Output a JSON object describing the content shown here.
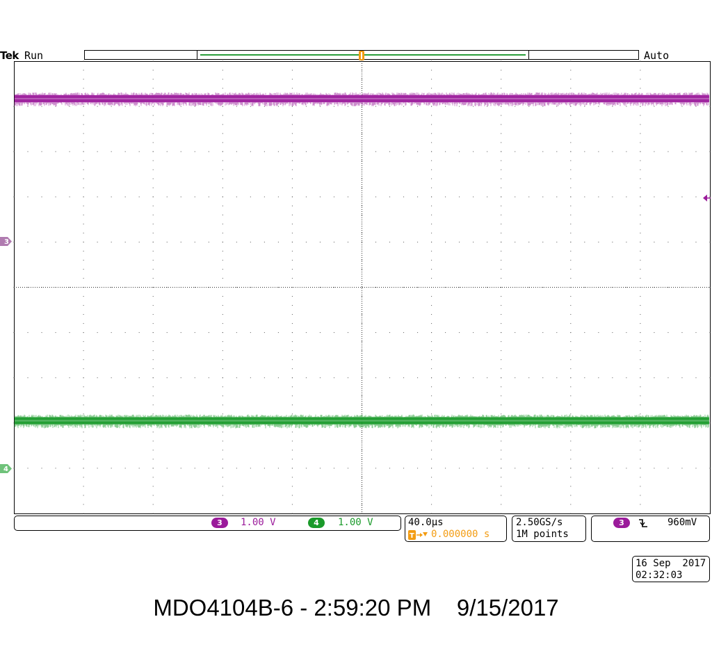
{
  "header": {
    "brand": "Tek",
    "run_state": "Run",
    "trigger_mode": "Auto"
  },
  "markers": {
    "trigger_t": "T",
    "ch3": "3",
    "ch4": "4"
  },
  "colors": {
    "ch3": "#9b1b9b",
    "ch4": "#1a9a2a",
    "trigger": "#f39c12",
    "graticule": "#000000"
  },
  "traces": [
    {
      "channel": "3",
      "color": "#9b1b9b",
      "level_divs_above_center": 4.17
    },
    {
      "channel": "4",
      "color": "#1a9a2a",
      "level_divs_above_center": -2.95
    }
  ],
  "status": {
    "ch3_badge": "3",
    "ch3_scale": "1.00 V",
    "ch4_badge": "4",
    "ch4_scale": "1.00 V",
    "timebase": "40.0µs",
    "trigger_position": "0.000000 s",
    "sample_rate": "2.50GS/s",
    "record_length": "1M points",
    "trigger_source_badge": "3",
    "trigger_slope": "↽",
    "trigger_level": "960mV"
  },
  "datetime": {
    "date": "16 Sep  2017",
    "time": "02:32:03"
  },
  "caption": "MDO4104B-6 - 2:59:20 PM    9/15/2017"
}
